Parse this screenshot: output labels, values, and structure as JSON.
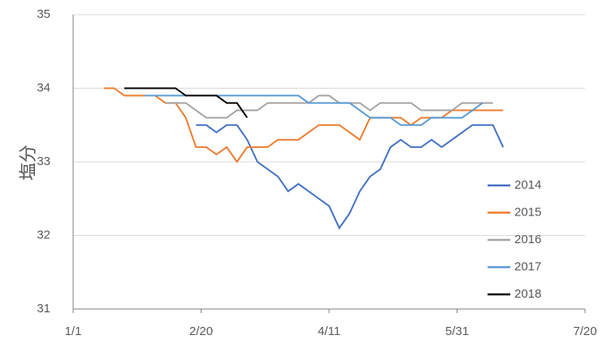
{
  "chart_data": {
    "type": "line",
    "y_label": "塩分",
    "x": [
      12,
      16,
      20,
      24,
      28,
      32,
      36,
      40,
      44,
      48,
      52,
      56,
      60,
      64,
      68,
      72,
      76,
      80,
      84,
      88,
      92,
      96,
      100,
      104,
      108,
      112,
      116,
      120,
      124,
      128,
      132,
      136,
      140,
      144,
      148,
      152,
      156,
      160,
      164,
      168
    ],
    "xlim": [
      0,
      200
    ],
    "xticks": [
      {
        "value": 0,
        "label": "1/1"
      },
      {
        "value": 50,
        "label": "2/20"
      },
      {
        "value": 100,
        "label": "4/11"
      },
      {
        "value": 150,
        "label": "5/31"
      },
      {
        "value": 200,
        "label": "7/20"
      }
    ],
    "ylim": [
      31,
      35
    ],
    "yticks": [
      31,
      32,
      33,
      34,
      35
    ],
    "grid": true,
    "legend": "right",
    "series": [
      {
        "name": "2014",
        "color": "#4472c4",
        "values": [
          null,
          null,
          null,
          null,
          null,
          null,
          null,
          null,
          null,
          33.5,
          33.5,
          33.4,
          33.5,
          33.5,
          33.3,
          33.0,
          32.9,
          32.8,
          32.6,
          32.7,
          32.6,
          32.5,
          32.4,
          32.1,
          32.3,
          32.6,
          32.8,
          32.9,
          33.2,
          33.3,
          33.2,
          33.2,
          33.3,
          33.2,
          33.3,
          33.4,
          33.5,
          33.5,
          33.5,
          33.2
        ]
      },
      {
        "name": "2015",
        "color": "#ed7d31",
        "values": [
          34.0,
          34.0,
          33.9,
          33.9,
          33.9,
          33.9,
          33.8,
          33.8,
          33.6,
          33.2,
          33.2,
          33.1,
          33.2,
          33.0,
          33.2,
          33.2,
          33.2,
          33.3,
          33.3,
          33.3,
          33.4,
          33.5,
          33.5,
          33.5,
          33.4,
          33.3,
          33.6,
          33.6,
          33.6,
          33.6,
          33.5,
          33.6,
          33.6,
          33.6,
          33.7,
          33.7,
          33.7,
          33.7,
          33.7,
          33.7
        ]
      },
      {
        "name": "2016",
        "color": "#a5a5a5",
        "values": [
          null,
          null,
          null,
          null,
          null,
          null,
          33.8,
          33.8,
          33.8,
          33.7,
          33.6,
          33.6,
          33.6,
          33.7,
          33.7,
          33.7,
          33.8,
          33.8,
          33.8,
          33.8,
          33.8,
          33.9,
          33.9,
          33.8,
          33.8,
          33.8,
          33.7,
          33.8,
          33.8,
          33.8,
          33.8,
          33.7,
          33.7,
          33.7,
          33.7,
          33.8,
          33.8,
          33.8,
          33.8,
          null
        ]
      },
      {
        "name": "2017",
        "color": "#5b9bd5",
        "values": [
          null,
          null,
          null,
          null,
          33.9,
          33.9,
          33.9,
          33.9,
          33.9,
          33.9,
          33.9,
          33.9,
          33.9,
          33.9,
          33.9,
          33.9,
          33.9,
          33.9,
          33.9,
          33.9,
          33.8,
          33.8,
          33.8,
          33.8,
          33.8,
          33.7,
          33.6,
          33.6,
          33.6,
          33.5,
          33.5,
          33.5,
          33.6,
          33.6,
          33.6,
          33.6,
          33.7,
          33.8,
          null,
          null
        ]
      },
      {
        "name": "2018",
        "color": "#000000",
        "values": [
          null,
          null,
          34.0,
          34.0,
          34.0,
          34.0,
          34.0,
          34.0,
          33.9,
          33.9,
          33.9,
          33.9,
          33.8,
          33.8,
          33.6,
          null,
          null,
          null,
          null,
          null,
          null,
          null,
          null,
          null,
          null,
          null,
          null,
          null,
          null,
          null,
          null,
          null,
          null,
          null,
          null,
          null,
          null,
          null,
          null,
          null
        ]
      }
    ]
  }
}
